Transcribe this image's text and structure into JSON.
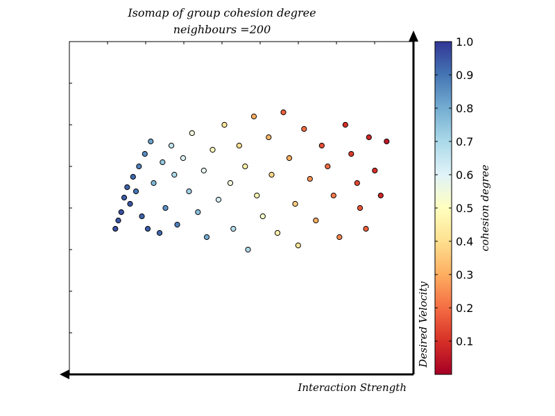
{
  "chart_data": {
    "type": "scatter",
    "title": "Isomap of group cohesion degree",
    "subtitle": "neighbours =200",
    "xlabel": "Interaction Strength",
    "ylabel": "Desired Velocity",
    "colorbar": {
      "label": "cohesion degree",
      "range": [
        0.0,
        1.0
      ],
      "ticks": [
        "0.1",
        "0.2",
        "0.3",
        "0.4",
        "0.5",
        "0.6",
        "0.7",
        "0.8",
        "0.9",
        "1.0"
      ],
      "colormap": "RdYlBu",
      "colors": [
        "#a50026",
        "#d73027",
        "#f46d43",
        "#fdae61",
        "#fee090",
        "#ffffbf",
        "#e0f3f8",
        "#abd9e9",
        "#74add1",
        "#4575b4",
        "#313695"
      ]
    },
    "axes_ticks_labels": "none",
    "grid": false,
    "points": [
      [
        0.05,
        0.3,
        0.96
      ],
      [
        0.06,
        0.34,
        0.95
      ],
      [
        0.07,
        0.38,
        0.96
      ],
      [
        0.08,
        0.45,
        0.94
      ],
      [
        0.09,
        0.5,
        0.93
      ],
      [
        0.1,
        0.42,
        0.95
      ],
      [
        0.11,
        0.55,
        0.92
      ],
      [
        0.12,
        0.48,
        0.9
      ],
      [
        0.13,
        0.6,
        0.88
      ],
      [
        0.14,
        0.36,
        0.93
      ],
      [
        0.15,
        0.66,
        0.86
      ],
      [
        0.16,
        0.3,
        0.94
      ],
      [
        0.17,
        0.72,
        0.82
      ],
      [
        0.18,
        0.52,
        0.78
      ],
      [
        0.2,
        0.28,
        0.92
      ],
      [
        0.21,
        0.62,
        0.74
      ],
      [
        0.22,
        0.4,
        0.85
      ],
      [
        0.24,
        0.7,
        0.66
      ],
      [
        0.25,
        0.56,
        0.7
      ],
      [
        0.26,
        0.32,
        0.88
      ],
      [
        0.28,
        0.64,
        0.6
      ],
      [
        0.3,
        0.48,
        0.72
      ],
      [
        0.31,
        0.76,
        0.55
      ],
      [
        0.33,
        0.38,
        0.76
      ],
      [
        0.35,
        0.58,
        0.58
      ],
      [
        0.36,
        0.26,
        0.8
      ],
      [
        0.38,
        0.68,
        0.5
      ],
      [
        0.4,
        0.44,
        0.62
      ],
      [
        0.42,
        0.8,
        0.42
      ],
      [
        0.44,
        0.52,
        0.55
      ],
      [
        0.45,
        0.3,
        0.68
      ],
      [
        0.47,
        0.7,
        0.4
      ],
      [
        0.49,
        0.6,
        0.45
      ],
      [
        0.5,
        0.2,
        0.7
      ],
      [
        0.52,
        0.84,
        0.3
      ],
      [
        0.53,
        0.46,
        0.48
      ],
      [
        0.55,
        0.36,
        0.52
      ],
      [
        0.57,
        0.74,
        0.32
      ],
      [
        0.58,
        0.56,
        0.38
      ],
      [
        0.6,
        0.28,
        0.46
      ],
      [
        0.62,
        0.86,
        0.18
      ],
      [
        0.64,
        0.64,
        0.3
      ],
      [
        0.66,
        0.42,
        0.36
      ],
      [
        0.67,
        0.22,
        0.42
      ],
      [
        0.69,
        0.78,
        0.2
      ],
      [
        0.71,
        0.54,
        0.26
      ],
      [
        0.73,
        0.34,
        0.3
      ],
      [
        0.75,
        0.7,
        0.15
      ],
      [
        0.77,
        0.6,
        0.2
      ],
      [
        0.79,
        0.46,
        0.22
      ],
      [
        0.81,
        0.26,
        0.24
      ],
      [
        0.83,
        0.8,
        0.1
      ],
      [
        0.85,
        0.66,
        0.12
      ],
      [
        0.87,
        0.52,
        0.14
      ],
      [
        0.88,
        0.4,
        0.16
      ],
      [
        0.9,
        0.3,
        0.18
      ],
      [
        0.91,
        0.74,
        0.08
      ],
      [
        0.93,
        0.58,
        0.1
      ],
      [
        0.95,
        0.46,
        0.08
      ],
      [
        0.97,
        0.72,
        0.05
      ]
    ]
  }
}
